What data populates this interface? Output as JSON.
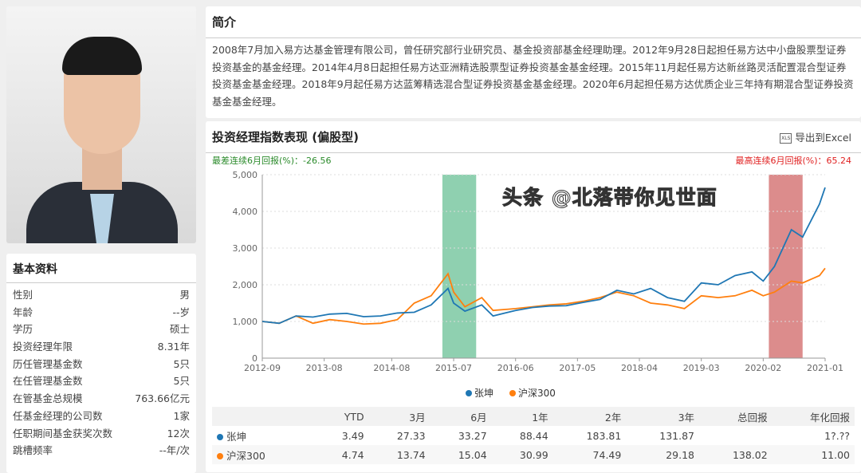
{
  "profile": {
    "section_title": "基本资料",
    "rows": [
      {
        "label": "性别",
        "value": "男"
      },
      {
        "label": "年龄",
        "value": "--岁"
      },
      {
        "label": "学历",
        "value": "硕士"
      },
      {
        "label": "投资经理年限",
        "value": "8.31年"
      },
      {
        "label": "历任管理基金数",
        "value": "5只"
      },
      {
        "label": "在任管理基金数",
        "value": "5只"
      },
      {
        "label": "在管基金总规模",
        "value": "763.66亿元"
      },
      {
        "label": "任基金经理的公司数",
        "value": "1家"
      },
      {
        "label": "任职期间基金获奖次数",
        "value": "12次"
      },
      {
        "label": "跳槽频率",
        "value": "--年/次"
      }
    ]
  },
  "intro": {
    "title": "简介",
    "text": "2008年7月加入易方达基金管理有限公司，曾任研究部行业研究员、基金投资部基金经理助理。2012年9月28日起担任易方达中小盘股票型证券投资基金的基金经理。2014年4月8日起担任易方达亚洲精选股票型证券投资基金基金经理。2015年11月起任易方达新丝路灵活配置混合型证券投资基金基金经理。2018年9月起任易方达蓝筹精选混合型证券投资基金基金经理。2020年6月起担任易方达优质企业三年持有期混合型证券投资基金基金经理。"
  },
  "perf": {
    "title": "投资经理指数表现 (偏股型)",
    "export_label": "导出到Excel",
    "export_icon": "xls-file-icon",
    "worst_label": "最差连续6月回报(%)：-26.56",
    "best_label": "最高连续6月回报(%)：65.24",
    "table": {
      "headers": [
        "",
        "YTD",
        "3月",
        "6月",
        "1年",
        "2年",
        "3年",
        "总回报",
        "年化回报"
      ],
      "rows": [
        {
          "name": "张坤",
          "color": "#1f77b4",
          "values": [
            "3.49",
            "27.33",
            "33.27",
            "88.44",
            "183.81",
            "131.87",
            "",
            "1?.??"
          ]
        },
        {
          "name": "沪深300",
          "color": "#ff7f0e",
          "values": [
            "4.74",
            "13.74",
            "15.04",
            "30.99",
            "74.49",
            "29.18",
            "138.02",
            "11.00"
          ]
        }
      ]
    }
  },
  "watermark": "头条 @北落带你见世面",
  "chart_data": {
    "type": "line",
    "ylim": [
      0,
      5000
    ],
    "yticks": [
      "0",
      "1,000",
      "2,000",
      "3,000",
      "4,000",
      "5,000"
    ],
    "xticks": [
      "2012-09",
      "2013-08",
      "2014-08",
      "2015-07",
      "2016-06",
      "2017-05",
      "2018-04",
      "2019-03",
      "2020-02",
      "2021-01"
    ],
    "grid": true,
    "legend": "bottom",
    "bands": [
      {
        "from": "2015-05",
        "to": "2015-11",
        "color": "#8fd0b0",
        "label": "worst"
      },
      {
        "from": "2020-03",
        "to": "2020-09",
        "color": "#dc8c8c",
        "label": "best"
      }
    ],
    "x": [
      "2012-09",
      "2012-12",
      "2013-03",
      "2013-06",
      "2013-09",
      "2013-12",
      "2014-03",
      "2014-06",
      "2014-09",
      "2014-12",
      "2015-03",
      "2015-06",
      "2015-07",
      "2015-09",
      "2015-12",
      "2016-02",
      "2016-06",
      "2016-09",
      "2016-12",
      "2017-03",
      "2017-06",
      "2017-09",
      "2017-12",
      "2018-03",
      "2018-06",
      "2018-09",
      "2018-12",
      "2019-03",
      "2019-06",
      "2019-09",
      "2019-12",
      "2020-02",
      "2020-04",
      "2020-07",
      "2020-09",
      "2020-12",
      "2021-01"
    ],
    "series": [
      {
        "name": "张坤",
        "color": "#1f77b4",
        "values": [
          1000,
          950,
          1150,
          1120,
          1200,
          1220,
          1130,
          1150,
          1230,
          1250,
          1450,
          1900,
          1500,
          1280,
          1450,
          1150,
          1300,
          1380,
          1420,
          1430,
          1520,
          1600,
          1850,
          1750,
          1900,
          1650,
          1550,
          2050,
          2000,
          2250,
          2350,
          2100,
          2500,
          3500,
          3300,
          4200,
          4650
        ]
      },
      {
        "name": "沪深300",
        "color": "#ff7f0e",
        "values": [
          1000,
          950,
          1150,
          950,
          1050,
          1000,
          930,
          950,
          1050,
          1500,
          1700,
          2300,
          1800,
          1400,
          1650,
          1300,
          1350,
          1400,
          1450,
          1480,
          1550,
          1650,
          1800,
          1700,
          1500,
          1450,
          1350,
          1700,
          1650,
          1700,
          1850,
          1700,
          1800,
          2100,
          2050,
          2250,
          2450
        ]
      }
    ]
  }
}
